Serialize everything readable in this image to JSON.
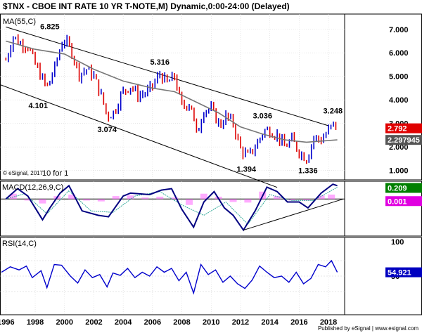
{
  "chart_data": {
    "type": "line",
    "title": "$TNX - CBOE INT RATE 10 YR T-NOTE,M) Dynamic,0:00-24:00 (Delayed)",
    "ma_label": "MA(55,C)",
    "copyright": "© eSignal, 2017",
    "split_note": "10 for 1",
    "footer": "Published by eSignal | www.esignal.com",
    "x_axis": {
      "range": [
        1995.6,
        2019.1
      ],
      "ticks": [
        "1996",
        "1998",
        "2000",
        "2002",
        "2004",
        "2006",
        "2008",
        "2010",
        "2012",
        "2014",
        "2016",
        "2018"
      ]
    },
    "price_panel": {
      "ylim": [
        0.6,
        7.65
      ],
      "ticks": [
        "1.000",
        "2.000",
        "3.000",
        "4.000",
        "5.000",
        "6.000",
        "7.000"
      ],
      "series": [
        {
          "name": "$TNX",
          "style": "ohlc-bars",
          "x": [
            1996.0,
            1996.5,
            1997.0,
            1997.5,
            1998.0,
            1998.8,
            1999.3,
            1999.9,
            2000.4,
            2001.0,
            2001.5,
            2002.0,
            2002.6,
            2002.9,
            2003.4,
            2003.9,
            2004.5,
            2005.0,
            2005.6,
            2006.0,
            2006.5,
            2007.0,
            2007.5,
            2008.0,
            2008.6,
            2009.0,
            2009.5,
            2010.0,
            2010.6,
            2011.0,
            2011.5,
            2012.0,
            2012.5,
            2013.0,
            2013.6,
            2014.0,
            2014.5,
            2015.0,
            2015.5,
            2016.0,
            2016.5,
            2017.0,
            2017.5,
            2018.0,
            2018.4,
            2018.6
          ],
          "values": [
            5.7,
            6.7,
            6.4,
            6.3,
            5.5,
            4.5,
            5.3,
            6.6,
            6.2,
            5.1,
            5.3,
            5.0,
            4.0,
            3.3,
            3.5,
            4.3,
            4.6,
            4.2,
            4.3,
            4.6,
            5.1,
            4.7,
            5.0,
            3.7,
            3.9,
            2.5,
            3.6,
            3.6,
            2.9,
            3.3,
            3.0,
            1.9,
            1.6,
            2.0,
            2.7,
            2.7,
            2.5,
            2.0,
            2.3,
            1.8,
            1.5,
            2.4,
            2.3,
            2.7,
            3.0,
            2.8
          ]
        },
        {
          "name": "MA(55,C)",
          "x": [
            1996.0,
            1998.0,
            2000.0,
            2002.0,
            2004.0,
            2006.0,
            2007.5,
            2009.0,
            2010.5,
            2012.0,
            2013.5,
            2015.0,
            2016.5,
            2018.6
          ],
          "values": [
            6.5,
            6.15,
            5.95,
            5.3,
            4.8,
            4.5,
            4.35,
            3.9,
            3.45,
            2.85,
            2.55,
            2.3,
            2.2,
            2.3
          ]
        }
      ],
      "annotations": [
        {
          "text": "6.825",
          "x": 1999.0,
          "y": 6.825
        },
        {
          "text": "5.316",
          "x": 2006.5,
          "y": 5.316
        },
        {
          "text": "4.101",
          "x": 1998.2,
          "y": 4.101
        },
        {
          "text": "3.074",
          "x": 2002.9,
          "y": 3.074
        },
        {
          "text": "3.036",
          "x": 2013.5,
          "y": 3.036
        },
        {
          "text": "3.248",
          "x": 2018.3,
          "y": 3.248
        },
        {
          "text": "1.394",
          "x": 2012.4,
          "y": 1.394
        },
        {
          "text": "1.336",
          "x": 2016.6,
          "y": 1.336
        }
      ],
      "channel_lines": [
        {
          "x": [
            1996.0,
            2018.0
          ],
          "y": [
            7.1,
            2.9
          ]
        },
        {
          "x": [
            1995.6,
            2014.5
          ],
          "y": [
            4.65,
            0.28
          ]
        }
      ],
      "last_values": [
        {
          "text": "2.792",
          "y": 2.792,
          "color": "#e00000"
        },
        {
          "text": "2.297945",
          "y": 2.298,
          "color": "#555555"
        }
      ]
    },
    "macd_panel": {
      "label": "MACD(12,26,9,C)",
      "ylim": [
        -1.25,
        0.6
      ],
      "series": [
        {
          "name": "MACD",
          "x": [
            1996.0,
            1996.8,
            1997.5,
            1998.5,
            1999.0,
            1999.7,
            2000.3,
            2001.2,
            2002.3,
            2003.0,
            2004.0,
            2004.5,
            2005.8,
            2006.6,
            2007.3,
            2008.0,
            2008.8,
            2009.5,
            2010.2,
            2010.9,
            2011.5,
            2012.2,
            2013.0,
            2013.8,
            2014.5,
            2015.2,
            2016.0,
            2016.6,
            2017.5,
            2018.3,
            2018.6
          ],
          "values": [
            0.0,
            0.35,
            0.1,
            -0.7,
            -0.3,
            0.2,
            0.45,
            -0.4,
            -0.55,
            -0.6,
            0.1,
            0.2,
            0.15,
            0.3,
            0.35,
            -0.35,
            -0.95,
            -0.1,
            0.25,
            -0.3,
            -0.55,
            -1.05,
            -0.4,
            0.4,
            0.25,
            -0.1,
            -0.1,
            -0.3,
            0.2,
            0.5,
            0.45
          ]
        },
        {
          "name": "Signal",
          "x": [
            1996.0,
            1997.3,
            1998.8,
            2000.3,
            2001.8,
            2003.3,
            2004.8,
            2006.5,
            2008.0,
            2009.5,
            2011.0,
            2012.5,
            2014.0,
            2015.5,
            2017.0,
            2018.6
          ],
          "values": [
            0.0,
            0.18,
            -0.5,
            0.28,
            -0.4,
            -0.45,
            0.1,
            0.25,
            -0.2,
            -0.55,
            -0.1,
            -0.85,
            0.15,
            -0.05,
            -0.05,
            0.4
          ]
        }
      ],
      "histogram": {
        "x": [
          1996.5,
          1997.5,
          1998.5,
          1999.5,
          2000.5,
          2001.5,
          2002.5,
          2003.5,
          2004.5,
          2005.5,
          2006.5,
          2007.5,
          2008.5,
          2009.5,
          2010.5,
          2011.5,
          2012.5,
          2013.5,
          2014.5,
          2015.5,
          2016.5,
          2017.5,
          2018.2
        ],
        "values": [
          0.18,
          -0.05,
          -0.15,
          0.1,
          0.15,
          -0.05,
          -0.08,
          0.1,
          0.12,
          0.05,
          0.08,
          0.05,
          -0.2,
          0.18,
          0.08,
          -0.1,
          -0.12,
          0.25,
          0.1,
          -0.05,
          -0.05,
          0.12,
          0.15
        ]
      },
      "trendline": {
        "x": [
          2012.2,
          2019.0
        ],
        "y": [
          -1.05,
          0.0
        ]
      },
      "last_values": [
        {
          "text": "0.209",
          "y": 0.209,
          "color": "#008000"
        },
        {
          "text": "0.001",
          "y": 0.001,
          "color": "#e000e0"
        }
      ]
    },
    "rsi_panel": {
      "label": "RSI(14,C)",
      "ylim": [
        0,
        100
      ],
      "ticks": [
        "50",
        "100"
      ],
      "series": [
        {
          "name": "RSI(14,C)",
          "x": [
            1995.7,
            1996.3,
            1996.9,
            1997.4,
            1997.8,
            1998.4,
            1998.8,
            1999.3,
            1999.8,
            2000.4,
            2000.9,
            2001.4,
            2001.9,
            2002.4,
            2002.9,
            2003.3,
            2003.8,
            2004.3,
            2004.8,
            2005.3,
            2005.8,
            2006.3,
            2006.8,
            2007.3,
            2007.8,
            2008.3,
            2008.8,
            2009.3,
            2009.8,
            2010.3,
            2010.8,
            2011.3,
            2011.8,
            2012.3,
            2012.8,
            2013.3,
            2013.8,
            2014.3,
            2014.8,
            2015.3,
            2015.8,
            2016.3,
            2016.8,
            2017.3,
            2017.8,
            2018.2,
            2018.6
          ],
          "values": [
            55,
            62,
            58,
            63,
            48,
            57,
            35,
            65,
            64,
            50,
            41,
            58,
            48,
            52,
            36,
            54,
            51,
            60,
            48,
            55,
            50,
            62,
            55,
            60,
            44,
            55,
            28,
            65,
            52,
            58,
            42,
            50,
            40,
            34,
            45,
            63,
            55,
            48,
            50,
            42,
            55,
            40,
            47,
            65,
            62,
            70,
            55
          ]
        }
      ],
      "last_value": {
        "text": "54.921",
        "y": 54.921,
        "color": "#0000c0"
      }
    }
  }
}
